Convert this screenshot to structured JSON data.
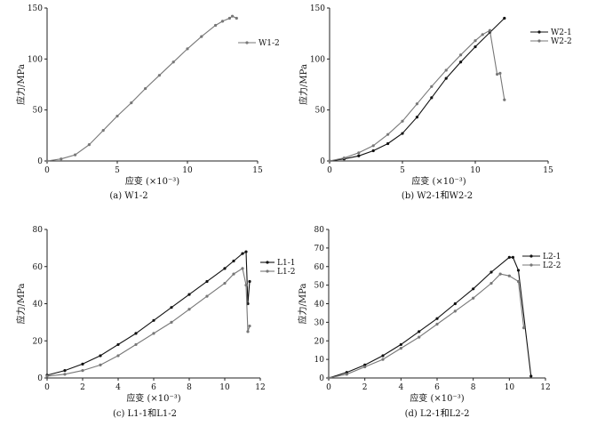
{
  "chart_data": [
    {
      "type": "line",
      "caption": "(a) W1-2",
      "xlabel": "应变 (×10⁻³)",
      "ylabel": "应力/MPa",
      "xlim": [
        0,
        15
      ],
      "ylim": [
        0,
        150
      ],
      "xticks": [
        "0",
        "5",
        "10",
        "15"
      ],
      "yticks": [
        "0",
        "50",
        "100",
        "150"
      ],
      "legend_position": "right",
      "series": [
        {
          "name": "W1-2",
          "color": "#777777",
          "x": [
            0,
            1,
            2,
            3,
            4,
            5,
            6,
            7,
            8,
            9,
            10,
            11,
            12,
            12.5,
            13,
            13.2,
            13.5
          ],
          "y": [
            0,
            2,
            6,
            16,
            30,
            44,
            57,
            71,
            84,
            97,
            110,
            122,
            133,
            137,
            140,
            142,
            140
          ]
        }
      ]
    },
    {
      "type": "line",
      "caption": "(b)  W2-1和W2-2",
      "xlabel": "应变 (×10⁻³)",
      "ylabel": "应力/MPa",
      "xlim": [
        0,
        15
      ],
      "ylim": [
        0,
        150
      ],
      "xticks": [
        "0",
        "5",
        "10",
        "15"
      ],
      "yticks": [
        "0",
        "50",
        "100",
        "150"
      ],
      "legend_position": "top-right",
      "series": [
        {
          "name": "W2-1",
          "color": "#111111",
          "x": [
            0,
            1,
            2,
            3,
            4,
            5,
            6,
            7,
            8,
            9,
            10,
            11,
            12
          ],
          "y": [
            0,
            2,
            5,
            10,
            17,
            27,
            43,
            62,
            81,
            97,
            112,
            126,
            140
          ]
        },
        {
          "name": "W2-2",
          "color": "#777777",
          "x": [
            0,
            1,
            2,
            3,
            4,
            5,
            6,
            7,
            8,
            9,
            10,
            10.5,
            11,
            11.5,
            11.7,
            12
          ],
          "y": [
            0,
            3,
            8,
            15,
            26,
            39,
            56,
            73,
            89,
            104,
            118,
            124,
            128,
            85,
            86,
            60
          ]
        }
      ]
    },
    {
      "type": "line",
      "caption": "(c)  L1-1和L1-2",
      "xlabel": "应变 (×10⁻³)",
      "ylabel": "应力/MPa",
      "xlim": [
        0,
        12
      ],
      "ylim": [
        0,
        80
      ],
      "xticks": [
        "0",
        "2",
        "4",
        "6",
        "8",
        "10",
        "12"
      ],
      "yticks": [
        "0",
        "20",
        "40",
        "60",
        "80"
      ],
      "legend_position": "right",
      "series": [
        {
          "name": "L1-1",
          "color": "#111111",
          "x": [
            0,
            1,
            2,
            3,
            4,
            5,
            6,
            7,
            8,
            9,
            10,
            10.5,
            11,
            11.2,
            11.3,
            11.4
          ],
          "y": [
            1.5,
            4,
            7.5,
            12,
            18,
            24,
            31,
            38,
            45,
            52,
            59,
            63,
            67,
            68,
            40,
            52
          ]
        },
        {
          "name": "L1-2",
          "color": "#777777",
          "x": [
            0,
            1,
            2,
            3,
            4,
            5,
            6,
            7,
            8,
            9,
            10,
            10.5,
            11,
            11.2,
            11.3,
            11.4
          ],
          "y": [
            1,
            2,
            4,
            7,
            12,
            18,
            24,
            30,
            37,
            44,
            51,
            56,
            59,
            50,
            25,
            28
          ]
        }
      ]
    },
    {
      "type": "line",
      "caption": "(d)  L2-1和L2-2",
      "xlabel": "应变 (×10⁻³)",
      "ylabel": "应力/MPa",
      "xlim": [
        0,
        12
      ],
      "ylim": [
        0,
        80
      ],
      "xticks": [
        "0",
        "2",
        "4",
        "6",
        "8",
        "10",
        "12"
      ],
      "yticks": [
        "0",
        "10",
        "20",
        "30",
        "40",
        "50",
        "60",
        "70",
        "80"
      ],
      "legend_position": "top-right",
      "series": [
        {
          "name": "L2-1",
          "color": "#111111",
          "x": [
            0,
            1,
            2,
            3,
            4,
            5,
            6,
            7,
            8,
            9,
            10,
            10.2,
            10.5,
            11.2
          ],
          "y": [
            0,
            3,
            7,
            12,
            18,
            25,
            32,
            40,
            48,
            57,
            65,
            65,
            58,
            1
          ]
        },
        {
          "name": "L2-2",
          "color": "#777777",
          "x": [
            0,
            1,
            2,
            3,
            4,
            5,
            6,
            7,
            8,
            9,
            9.5,
            10,
            10.5,
            10.8
          ],
          "y": [
            0,
            2,
            6,
            10,
            16,
            22,
            29,
            36,
            43,
            51,
            56,
            55,
            52,
            27
          ]
        }
      ]
    }
  ]
}
